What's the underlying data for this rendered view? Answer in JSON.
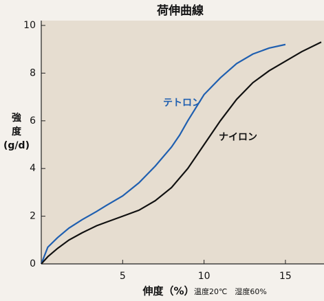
{
  "chart_data": {
    "type": "line",
    "title": "荷伸曲線",
    "ylabel_lines": [
      "強",
      "度",
      "(g/d)"
    ],
    "xlabel": "伸度（%）",
    "note": "温度20℃　湿度60%",
    "xlim": [
      0,
      17.2
    ],
    "ylim": [
      0,
      10
    ],
    "xticks": [
      5,
      10,
      15
    ],
    "yticks": [
      0,
      2,
      4,
      6,
      8,
      10
    ],
    "grid": false,
    "series": [
      {
        "name": "テトロン",
        "color": "#1f5fb0",
        "x": [
          0,
          0.4,
          1,
          1.7,
          2.5,
          3.4,
          4,
          5,
          6,
          7,
          8,
          8.5,
          9,
          10,
          11,
          12,
          13,
          14,
          15
        ],
        "values": [
          0,
          0.7,
          1.1,
          1.5,
          1.85,
          2.2,
          2.45,
          2.85,
          3.4,
          4.1,
          4.9,
          5.4,
          6.0,
          7.1,
          7.8,
          8.4,
          8.8,
          9.05,
          9.2
        ]
      },
      {
        "name": "ナイロン",
        "color": "#111111",
        "x": [
          0,
          0.4,
          1,
          1.7,
          2.5,
          3.4,
          4,
          5,
          6,
          7,
          8,
          9,
          10,
          11,
          12,
          13,
          14,
          15,
          16,
          17.2
        ],
        "values": [
          0,
          0.3,
          0.65,
          1.0,
          1.3,
          1.6,
          1.75,
          2.0,
          2.25,
          2.65,
          3.2,
          4.0,
          5.0,
          6.0,
          6.9,
          7.6,
          8.1,
          8.5,
          8.9,
          9.3
        ]
      }
    ]
  }
}
